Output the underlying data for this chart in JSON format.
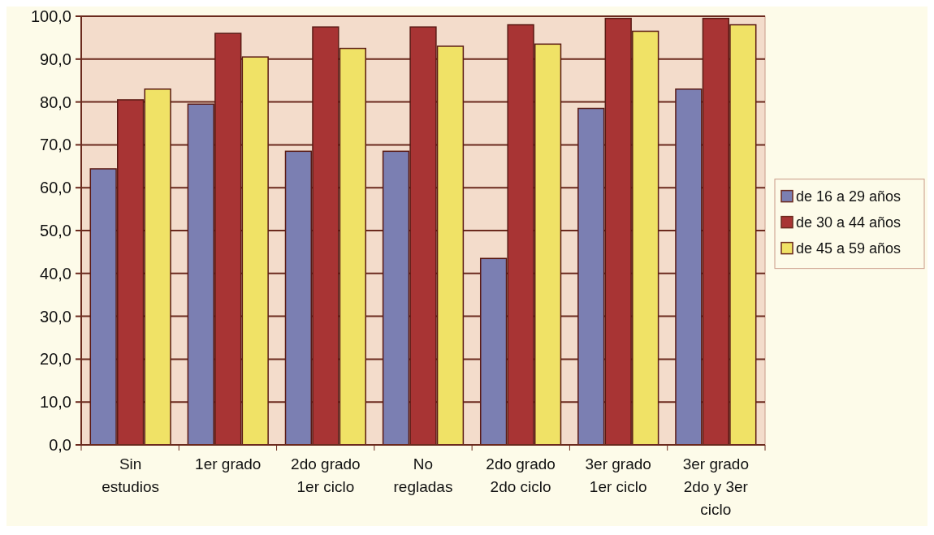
{
  "chart_data": {
    "type": "bar",
    "categories": [
      "Sin estudios",
      "1er grado",
      "2do grado 1er ciclo",
      "No regladas",
      "2do grado 2do ciclo",
      "3er grado 1er ciclo",
      "3er grado 2do y 3er ciclo"
    ],
    "series": [
      {
        "name": "de 16 a 29 años",
        "color": "#7b7fb2",
        "values": [
          64.4,
          79.5,
          68.5,
          68.5,
          43.5,
          78.5,
          83
        ]
      },
      {
        "name": "de 30 a 44 años",
        "color": "#a83434",
        "values": [
          80.5,
          96,
          97.5,
          97.5,
          98,
          99.5,
          99.5
        ]
      },
      {
        "name": "de 45 a 59 años",
        "color": "#f0e266",
        "values": [
          83,
          90.5,
          92.5,
          93,
          93.5,
          96.5,
          98
        ]
      }
    ],
    "ylim": [
      0,
      100
    ],
    "yticks": [
      {
        "value": 0,
        "label": "0,0"
      },
      {
        "value": 10,
        "label": "10,0"
      },
      {
        "value": 20,
        "label": "20,0"
      },
      {
        "value": 30,
        "label": "30,0"
      },
      {
        "value": 40,
        "label": "40,0"
      },
      {
        "value": 50,
        "label": "50,0"
      },
      {
        "value": 60,
        "label": "60,0"
      },
      {
        "value": 70,
        "label": "70,0"
      },
      {
        "value": 80,
        "label": "80,0"
      },
      {
        "value": 90,
        "label": "90,0"
      },
      {
        "value": 100,
        "label": "100,0"
      }
    ],
    "grid": "y",
    "legend": "right"
  }
}
